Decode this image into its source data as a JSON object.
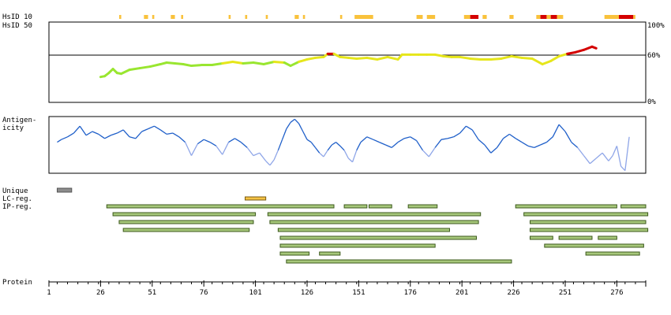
{
  "track_labels": {
    "hsid10": "HsID 10",
    "hsid50": "HsID 50",
    "antigenicity": [
      "Antigen-",
      "icity"
    ],
    "unique": "Unique",
    "lc_reg": "LC-reg.",
    "ip_reg": "IP-reg.",
    "protein": "Protein"
  },
  "identity_axis": {
    "top_label": "100%",
    "mid_label": "60%",
    "bottom_label": "0%"
  },
  "colors": {
    "hs_yellow": "#f9c23c",
    "hs_red": "#d40000",
    "antigen_dark": "#1f5fc9",
    "antigen_light": "#8fa6e8",
    "identity_green": "#99e630",
    "identity_yellow": "#e6e61a",
    "identity_red": "#d40000",
    "region_fill": "#a6c77a",
    "region_border": "#3d5a1e",
    "unique_fill": "#8c8c8c",
    "lc_fill": "#f4c244"
  },
  "chart_data": {
    "type": "line",
    "x_axis": {
      "label": "Protein",
      "range": [
        1,
        290
      ],
      "ticks": [
        1,
        26,
        51,
        76,
        101,
        126,
        151,
        176,
        201,
        226,
        251,
        276
      ]
    },
    "hsid10_segments": [
      {
        "start": 35,
        "end": 36,
        "level": "medium"
      },
      {
        "start": 47,
        "end": 49,
        "level": "medium"
      },
      {
        "start": 51,
        "end": 52,
        "level": "medium"
      },
      {
        "start": 60,
        "end": 62,
        "level": "medium"
      },
      {
        "start": 65,
        "end": 66,
        "level": "medium"
      },
      {
        "start": 88,
        "end": 89,
        "level": "medium"
      },
      {
        "start": 96,
        "end": 97,
        "level": "medium"
      },
      {
        "start": 106,
        "end": 107,
        "level": "medium"
      },
      {
        "start": 120,
        "end": 122,
        "level": "medium"
      },
      {
        "start": 124,
        "end": 125,
        "level": "medium"
      },
      {
        "start": 142,
        "end": 143,
        "level": "medium"
      },
      {
        "start": 149,
        "end": 158,
        "level": "medium"
      },
      {
        "start": 179,
        "end": 182,
        "level": "medium"
      },
      {
        "start": 184,
        "end": 188,
        "level": "medium"
      },
      {
        "start": 202,
        "end": 205,
        "level": "medium"
      },
      {
        "start": 205,
        "end": 209,
        "level": "high"
      },
      {
        "start": 211,
        "end": 213,
        "level": "medium"
      },
      {
        "start": 224,
        "end": 226,
        "level": "medium"
      },
      {
        "start": 237,
        "end": 239,
        "level": "medium"
      },
      {
        "start": 239,
        "end": 242,
        "level": "high"
      },
      {
        "start": 242,
        "end": 244,
        "level": "medium"
      },
      {
        "start": 244,
        "end": 247,
        "level": "high"
      },
      {
        "start": 247,
        "end": 250,
        "level": "medium"
      },
      {
        "start": 270,
        "end": 277,
        "level": "medium"
      },
      {
        "start": 277,
        "end": 284,
        "level": "high"
      },
      {
        "start": 284,
        "end": 285,
        "level": "medium"
      }
    ],
    "hsid50": {
      "y_range": [
        0,
        100
      ],
      "threshold": 60,
      "x": [
        26,
        28,
        30,
        32,
        34,
        36,
        40,
        45,
        50,
        55,
        58,
        62,
        66,
        70,
        75,
        80,
        85,
        90,
        95,
        100,
        105,
        110,
        115,
        118,
        122,
        126,
        130,
        134,
        136,
        139,
        142,
        146,
        150,
        155,
        160,
        165,
        170,
        172,
        176,
        180,
        184,
        188,
        192,
        196,
        200,
        205,
        210,
        215,
        220,
        225,
        230,
        235,
        240,
        244,
        248,
        252,
        256,
        260,
        264,
        266
      ],
      "y": [
        32,
        33,
        37,
        42,
        37,
        36,
        41,
        43,
        45,
        48,
        50,
        49,
        48,
        46,
        47,
        47,
        49,
        51,
        49,
        50,
        48,
        51,
        50,
        46,
        51,
        54,
        56,
        57,
        61,
        61,
        57,
        56,
        55,
        56,
        54,
        57,
        54,
        60,
        60,
        60,
        60,
        60,
        58,
        57,
        57,
        55,
        54,
        54,
        55,
        58,
        56,
        55,
        48,
        52,
        58,
        61,
        63,
        66,
        70,
        68
      ]
    },
    "antigenicity": {
      "x": [
        5,
        7,
        10,
        13,
        16,
        19,
        22,
        25,
        28,
        31,
        34,
        37,
        40,
        43,
        46,
        49,
        52,
        55,
        58,
        61,
        64,
        67,
        70,
        73,
        76,
        79,
        82,
        85,
        88,
        91,
        94,
        97,
        100,
        103,
        106,
        108,
        110,
        112,
        114,
        116,
        118,
        120,
        122,
        124,
        126,
        128,
        130,
        132,
        134,
        136,
        138,
        140,
        142,
        144,
        146,
        148,
        150,
        152,
        155,
        158,
        161,
        164,
        167,
        170,
        173,
        176,
        179,
        182,
        185,
        188,
        191,
        194,
        197,
        200,
        203,
        206,
        209,
        212,
        215,
        218,
        221,
        224,
        227,
        230,
        233,
        236,
        239,
        242,
        245,
        248,
        251,
        254,
        257,
        260,
        263,
        266,
        269,
        272,
        274,
        276,
        278,
        280,
        282
      ],
      "y": [
        0.55,
        0.6,
        0.65,
        0.72,
        0.85,
        0.68,
        0.75,
        0.7,
        0.62,
        0.68,
        0.72,
        0.78,
        0.65,
        0.62,
        0.75,
        0.8,
        0.85,
        0.78,
        0.7,
        0.72,
        0.65,
        0.55,
        0.3,
        0.52,
        0.6,
        0.55,
        0.48,
        0.32,
        0.55,
        0.62,
        0.55,
        0.45,
        0.3,
        0.35,
        0.2,
        0.12,
        0.22,
        0.4,
        0.6,
        0.8,
        0.92,
        0.98,
        0.9,
        0.75,
        0.6,
        0.55,
        0.45,
        0.35,
        0.28,
        0.4,
        0.5,
        0.55,
        0.48,
        0.4,
        0.25,
        0.18,
        0.4,
        0.55,
        0.65,
        0.6,
        0.55,
        0.5,
        0.45,
        0.55,
        0.62,
        0.65,
        0.58,
        0.4,
        0.28,
        0.45,
        0.6,
        0.62,
        0.65,
        0.72,
        0.85,
        0.78,
        0.6,
        0.5,
        0.35,
        0.45,
        0.62,
        0.7,
        0.62,
        0.55,
        0.48,
        0.45,
        0.5,
        0.55,
        0.65,
        0.88,
        0.75,
        0.55,
        0.45,
        0.3,
        0.15,
        0.25,
        0.35,
        0.2,
        0.3,
        0.48,
        0.1,
        0.02,
        0.65
      ],
      "y_range": [
        0,
        1
      ],
      "light_threshold": 0.35
    },
    "unique": [
      {
        "start": 5,
        "end": 12
      }
    ],
    "lc_regions": [
      {
        "start": 96,
        "end": 106
      }
    ],
    "ip_regions": [
      {
        "start": 29,
        "end": 139
      },
      {
        "start": 144,
        "end": 155
      },
      {
        "start": 156,
        "end": 167
      },
      {
        "start": 175,
        "end": 189
      },
      {
        "start": 227,
        "end": 276
      },
      {
        "start": 278,
        "end": 290
      },
      {
        "start": 32,
        "end": 101
      },
      {
        "start": 107,
        "end": 210
      },
      {
        "start": 231,
        "end": 291
      },
      {
        "start": 35,
        "end": 100
      },
      {
        "start": 108,
        "end": 209
      },
      {
        "start": 234,
        "end": 290
      },
      {
        "start": 37,
        "end": 98
      },
      {
        "start": 112,
        "end": 195
      },
      {
        "start": 234,
        "end": 291
      },
      {
        "start": 113,
        "end": 208
      },
      {
        "start": 234,
        "end": 245
      },
      {
        "start": 248,
        "end": 264
      },
      {
        "start": 267,
        "end": 276
      },
      {
        "start": 113,
        "end": 188
      },
      {
        "start": 241,
        "end": 289
      },
      {
        "start": 113,
        "end": 127
      },
      {
        "start": 132,
        "end": 142
      },
      {
        "start": 261,
        "end": 287
      },
      {
        "start": 116,
        "end": 225
      }
    ]
  }
}
